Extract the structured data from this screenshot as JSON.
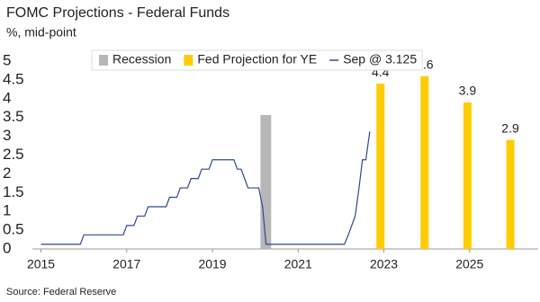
{
  "chart_data": {
    "type": "combo",
    "title": "FOMC Projections - Federal Funds",
    "subtitle": "%, mid-point",
    "source": "Source: Federal Reserve",
    "xlim": [
      2014.8,
      2026.6
    ],
    "xticks": [
      2015,
      2017,
      2019,
      2021,
      2023,
      2025
    ],
    "ylim": [
      0,
      5
    ],
    "yticks": [
      0,
      0.5,
      1,
      1.5,
      2,
      2.5,
      3,
      3.5,
      4,
      4.5,
      5
    ],
    "legend": "top",
    "series": [
      {
        "name": "Recession",
        "type": "span",
        "color": "#b7b7b7",
        "x": [
          2020.12,
          2020.37
        ]
      },
      {
        "name": "Fed Projection for YE",
        "type": "bar",
        "color": "#ffcc00",
        "x": [
          2022.92,
          2023.95,
          2024.95,
          2025.95
        ],
        "values": [
          4.4,
          4.6,
          3.9,
          2.9
        ]
      },
      {
        "name": "Sep @ 3.125",
        "type": "line",
        "color": "#2e4a8c",
        "x": [
          2015.0,
          2015.92,
          2016.0,
          2016.92,
          2017.0,
          2017.17,
          2017.25,
          2017.42,
          2017.5,
          2017.92,
          2018.0,
          2018.17,
          2018.25,
          2018.42,
          2018.5,
          2018.67,
          2018.75,
          2018.92,
          2019.0,
          2019.5,
          2019.58,
          2019.67,
          2019.75,
          2019.83,
          2020.08,
          2020.17,
          2020.25,
          2022.08,
          2022.17,
          2022.33,
          2022.42,
          2022.5,
          2022.58,
          2022.67
        ],
        "values": [
          0.125,
          0.125,
          0.375,
          0.375,
          0.625,
          0.625,
          0.875,
          0.875,
          1.125,
          1.125,
          1.375,
          1.375,
          1.625,
          1.625,
          1.875,
          1.875,
          2.125,
          2.125,
          2.375,
          2.375,
          2.125,
          2.125,
          1.875,
          1.625,
          1.625,
          1.125,
          0.125,
          0.125,
          0.375,
          0.875,
          1.625,
          2.375,
          2.375,
          3.125
        ]
      }
    ]
  }
}
